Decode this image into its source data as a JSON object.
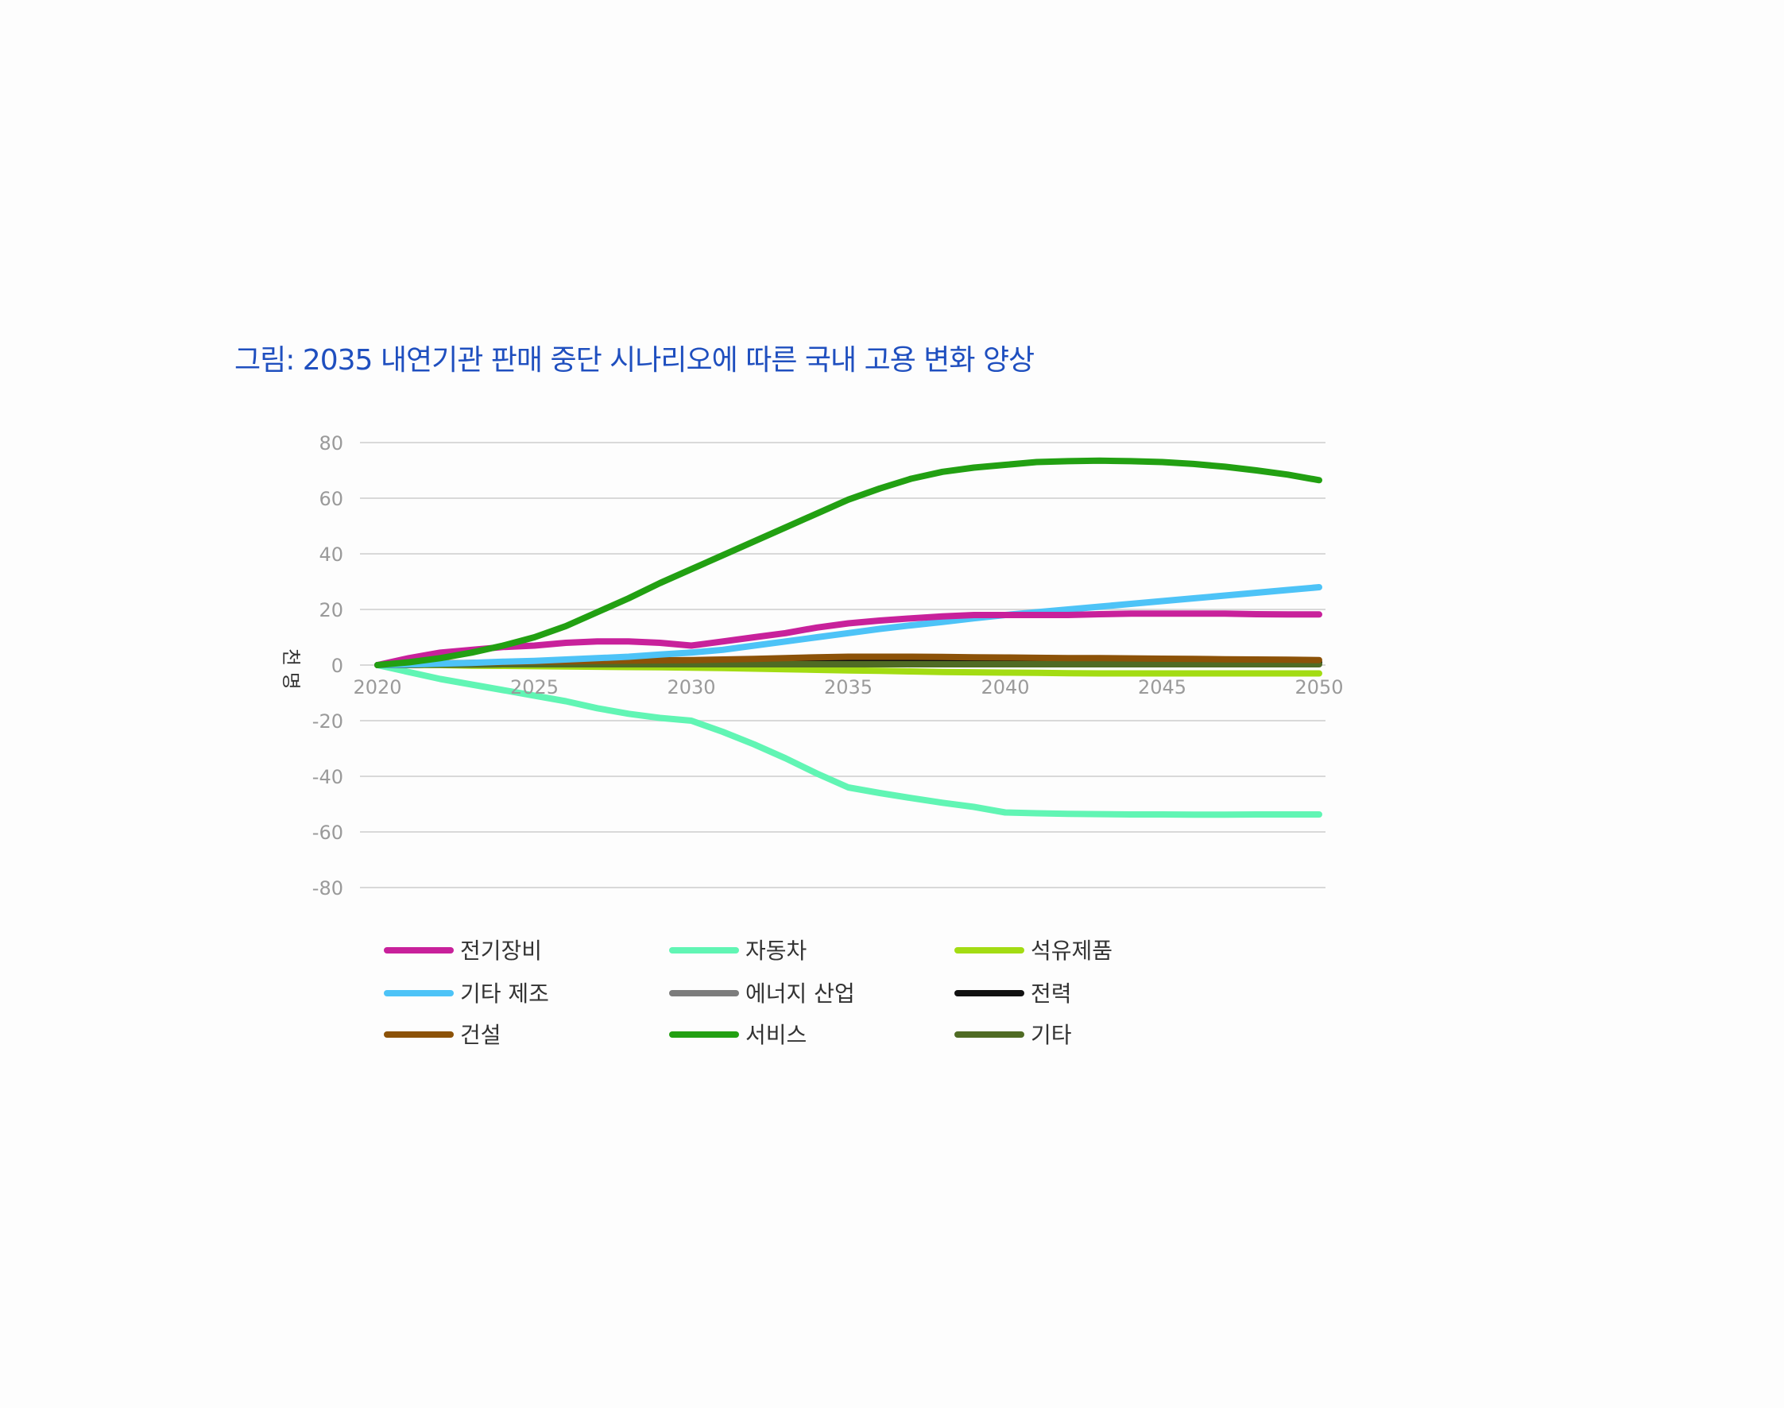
{
  "page_title": "그림: 2035 내연기관 판매 중단 시나리오에 따른 국내 고용 변화 양상",
  "chart_data": {
    "type": "line",
    "title": "그림: 2035 내연기관 판매 중단 시나리오에 따른 국내 고용 변화 양상",
    "xlabel": "",
    "ylabel": "천 명",
    "x": [
      2020,
      2021,
      2022,
      2023,
      2024,
      2025,
      2026,
      2027,
      2028,
      2029,
      2030,
      2031,
      2032,
      2033,
      2034,
      2035,
      2036,
      2037,
      2038,
      2039,
      2040,
      2041,
      2042,
      2043,
      2044,
      2045,
      2046,
      2047,
      2048,
      2049,
      2050
    ],
    "x_ticks": [
      2020,
      2025,
      2030,
      2035,
      2040,
      2045,
      2050
    ],
    "y_ticks": [
      80,
      60,
      40,
      20,
      0,
      -20,
      -40,
      -60,
      -80
    ],
    "xlim": [
      2020,
      2050
    ],
    "ylim": [
      -80,
      80
    ],
    "grid": true,
    "legend_position": "bottom",
    "legend_columns": 3,
    "series": [
      {
        "name": "전기장비",
        "color": "#c8219b",
        "values": [
          0,
          2.5,
          4.5,
          5.5,
          6.5,
          7,
          8,
          8.5,
          8.5,
          8,
          7,
          8.5,
          10,
          11.5,
          13.5,
          15,
          16,
          16.8,
          17.5,
          18,
          18,
          18,
          18,
          18.3,
          18.5,
          18.5,
          18.5,
          18.5,
          18.3,
          18.2,
          18.2
        ]
      },
      {
        "name": "자동차",
        "color": "#61f5b4",
        "values": [
          0,
          -2.5,
          -5,
          -7,
          -9,
          -11,
          -13,
          -15.5,
          -17.5,
          -19,
          -20,
          -24,
          -28.5,
          -33.5,
          -39,
          -44,
          -46,
          -47.8,
          -49.5,
          -51,
          -53,
          -53.3,
          -53.5,
          -53.6,
          -53.7,
          -53.7,
          -53.8,
          -53.8,
          -53.7,
          -53.7,
          -53.7
        ]
      },
      {
        "name": "석유제품",
        "color": "#a3dc13",
        "values": [
          0,
          0,
          0,
          -0.2,
          -0.3,
          -0.4,
          -0.5,
          -0.6,
          -0.7,
          -0.8,
          -0.9,
          -1.1,
          -1.3,
          -1.5,
          -1.7,
          -1.9,
          -2.1,
          -2.3,
          -2.5,
          -2.6,
          -2.7,
          -2.8,
          -2.9,
          -3,
          -3,
          -3,
          -3,
          -3,
          -3,
          -3,
          -3
        ]
      },
      {
        "name": "기타 제조",
        "color": "#4dc3f7",
        "values": [
          0,
          0.2,
          0.5,
          0.8,
          1.2,
          1.5,
          2,
          2.5,
          3,
          3.8,
          4.5,
          5.5,
          7,
          8.5,
          10,
          11.5,
          13,
          14.3,
          15.5,
          16.8,
          18,
          19,
          20,
          21,
          22,
          23,
          24,
          25,
          26,
          27,
          28
        ]
      },
      {
        "name": "에너지 산업",
        "color": "#7c7c7c",
        "values": [
          0,
          0.1,
          0.2,
          0.3,
          0.3,
          0.4,
          0.4,
          0.5,
          0.5,
          0.5,
          0.6,
          0.6,
          0.6,
          0.6,
          0.6,
          0.6,
          0.6,
          0.6,
          0.6,
          0.6,
          0.6,
          0.6,
          0.6,
          0.6,
          0.6,
          0.6,
          0.6,
          0.6,
          0.6,
          0.6,
          0.6
        ]
      },
      {
        "name": "전력",
        "color": "#111111",
        "values": [
          0,
          0.1,
          0.2,
          0.2,
          0.3,
          0.3,
          0.3,
          0.4,
          0.4,
          0.4,
          0.5,
          0.6,
          0.7,
          0.8,
          0.9,
          1,
          1,
          1,
          1,
          1,
          1,
          1,
          1,
          1,
          1,
          1,
          1,
          1,
          1,
          1,
          1
        ]
      },
      {
        "name": "건설",
        "color": "#8c5208",
        "values": [
          0,
          0.3,
          0.6,
          0.8,
          1,
          1.2,
          1.3,
          1.5,
          1.6,
          1.7,
          1.8,
          2,
          2.2,
          2.5,
          2.8,
          3,
          3,
          3,
          2.9,
          2.8,
          2.7,
          2.6,
          2.5,
          2.5,
          2.4,
          2.3,
          2.2,
          2.1,
          2,
          1.9,
          1.8
        ]
      },
      {
        "name": "서비스",
        "color": "#22a012",
        "values": [
          0,
          1,
          2.5,
          4.5,
          7,
          10,
          14,
          19,
          24,
          29.5,
          34.5,
          39.5,
          44.5,
          49.5,
          54.5,
          59.5,
          63.5,
          67,
          69.5,
          71,
          72,
          73,
          73.3,
          73.5,
          73.3,
          73,
          72.3,
          71.3,
          70,
          68.5,
          66.5
        ]
      },
      {
        "name": "기타",
        "color": "#4f6b24",
        "values": [
          0,
          0.1,
          0.2,
          0.2,
          0.3,
          0.3,
          0.3,
          0.3,
          0.3,
          0.3,
          0.3,
          0.3,
          0.3,
          0.3,
          0.3,
          0.3,
          0.3,
          0.3,
          0.3,
          0.3,
          0.3,
          0.3,
          0.3,
          0.3,
          0.3,
          0.3,
          0.3,
          0.3,
          0.3,
          0.3,
          0.3
        ]
      }
    ],
    "draw_order": [
      "자동차",
      "석유제품",
      "에너지 산업",
      "전력",
      "기타",
      "건설",
      "기타 제조",
      "전기장비",
      "서비스"
    ]
  }
}
